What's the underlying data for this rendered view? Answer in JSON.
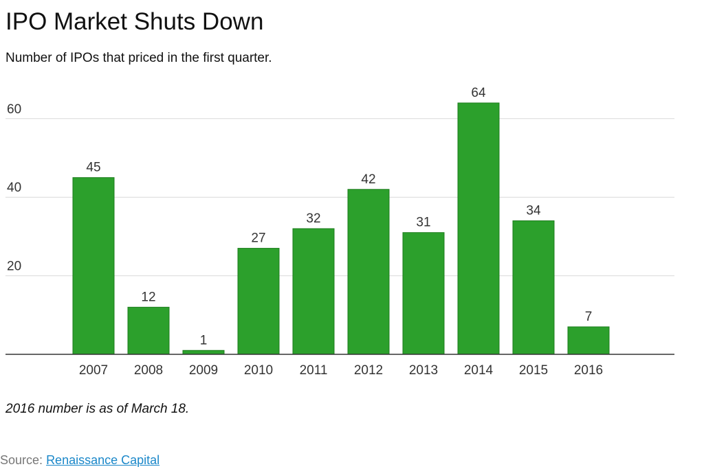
{
  "title": "IPO Market Shuts Down",
  "subtitle": "Number of IPOs that priced in the first quarter.",
  "note": "2016 number is as of March 18.",
  "source": {
    "prefix": "Source:",
    "link_text": "Renaissance Capital"
  },
  "colors": {
    "bar": "#2ca02c",
    "bar_stroke": "#1e7d1e",
    "grid": "#d9d9d9",
    "axis": "#333333",
    "link": "#1a87c9"
  },
  "chart_data": {
    "type": "bar",
    "categories": [
      "2007",
      "2008",
      "2009",
      "2010",
      "2011",
      "2012",
      "2013",
      "2014",
      "2015",
      "2016"
    ],
    "values": [
      45,
      12,
      1,
      27,
      32,
      42,
      31,
      64,
      34,
      7
    ],
    "title": "IPO Market Shuts Down",
    "subtitle": "Number of IPOs that priced in the first quarter.",
    "xlabel": "",
    "ylabel": "",
    "yticks": [
      20,
      40,
      60
    ],
    "ylim": [
      0,
      66
    ],
    "grid": true,
    "data_labels": true
  }
}
